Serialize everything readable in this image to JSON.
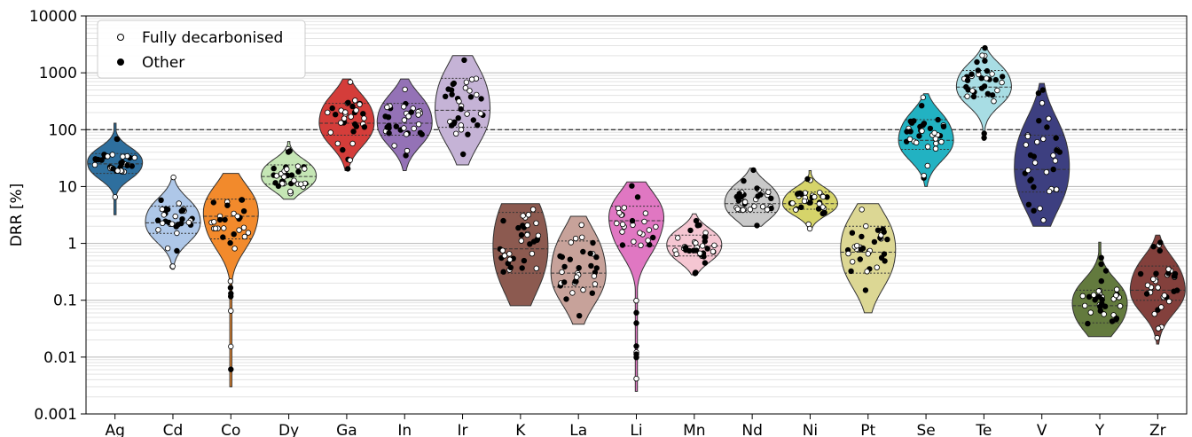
{
  "chart_data": {
    "type": "violin",
    "ylabel": "DRR [%]",
    "yscale": "log",
    "ylim": [
      0.001,
      10000
    ],
    "yticks": [
      "0.001",
      "0.01",
      "0.1",
      "1",
      "10",
      "100",
      "1000",
      "10000"
    ],
    "grid": "horizontal major and minor",
    "reference_line": {
      "y": 100,
      "style": "dashed"
    },
    "legend": {
      "placement": "top-left",
      "entries": [
        {
          "label": "Fully decarbonised",
          "marker": "open-circle"
        },
        {
          "label": "Other",
          "marker": "filled-circle"
        }
      ]
    },
    "categories": [
      "Ag",
      "Cd",
      "Co",
      "Dy",
      "Ga",
      "In",
      "Ir",
      "K",
      "La",
      "Li",
      "Mn",
      "Nd",
      "Ni",
      "Pt",
      "Se",
      "Te",
      "V",
      "Y",
      "Zr"
    ],
    "colors": [
      "#2e6f9e",
      "#aec7e8",
      "#f28a2c",
      "#c5e6b5",
      "#d43d3a",
      "#9472b6",
      "#c5b3d6",
      "#8c5a50",
      "#c7a29a",
      "#e077c2",
      "#f5c6d2",
      "#c9c9c9",
      "#d6d46a",
      "#dcd794",
      "#22b2c2",
      "#a8dde4",
      "#3d3f80",
      "#637a3e",
      "#83403c"
    ],
    "series": [
      {
        "name": "Ag",
        "min": 3.2,
        "max": 130,
        "q1": 17,
        "median": 25,
        "q3": 38
      },
      {
        "name": "Cd",
        "min": 0.35,
        "max": 15,
        "q1": 1.5,
        "median": 2.3,
        "q3": 4.5
      },
      {
        "name": "Co",
        "min": 0.003,
        "max": 17,
        "q1": 1.2,
        "median": 3,
        "q3": 6
      },
      {
        "name": "Dy",
        "min": 6,
        "max": 62,
        "q1": 11,
        "median": 15,
        "q3": 24
      },
      {
        "name": "Ga",
        "min": 19,
        "max": 780,
        "q1": 80,
        "median": 130,
        "q3": 290
      },
      {
        "name": "In",
        "min": 19,
        "max": 780,
        "q1": 80,
        "median": 130,
        "q3": 290
      },
      {
        "name": "Ir",
        "min": 24,
        "max": 2000,
        "q1": 110,
        "median": 220,
        "q3": 800
      },
      {
        "name": "K",
        "min": 0.08,
        "max": 5,
        "q1": 0.3,
        "median": 0.8,
        "q3": 3.5
      },
      {
        "name": "La",
        "min": 0.038,
        "max": 3,
        "q1": 0.17,
        "median": 0.3,
        "q3": 1.1
      },
      {
        "name": "Li",
        "min": 0.0025,
        "max": 12,
        "q1": 0.9,
        "median": 2.5,
        "q3": 4.5
      },
      {
        "name": "Mn",
        "min": 0.28,
        "max": 3.3,
        "q1": 0.6,
        "median": 0.9,
        "q3": 1.4
      },
      {
        "name": "Nd",
        "min": 2,
        "max": 21,
        "q1": 3.5,
        "median": 5,
        "q3": 9
      },
      {
        "name": "Ni",
        "min": 1.7,
        "max": 19,
        "q1": 4,
        "median": 5,
        "q3": 8
      },
      {
        "name": "Pt",
        "min": 0.06,
        "max": 5,
        "q1": 0.3,
        "median": 0.7,
        "q3": 2
      },
      {
        "name": "Se",
        "min": 10,
        "max": 430,
        "q1": 45,
        "median": 65,
        "q3": 150
      },
      {
        "name": "Te",
        "min": 65,
        "max": 2800,
        "q1": 380,
        "median": 560,
        "q3": 1100
      },
      {
        "name": "V",
        "min": 2,
        "max": 650,
        "q1": 8,
        "median": 20,
        "q3": 80
      },
      {
        "name": "Y",
        "min": 0.023,
        "max": 1.05,
        "q1": 0.04,
        "median": 0.08,
        "q3": 0.15
      },
      {
        "name": "Zr",
        "min": 0.017,
        "max": 1.4,
        "q1": 0.1,
        "median": 0.15,
        "q3": 0.4
      }
    ]
  }
}
